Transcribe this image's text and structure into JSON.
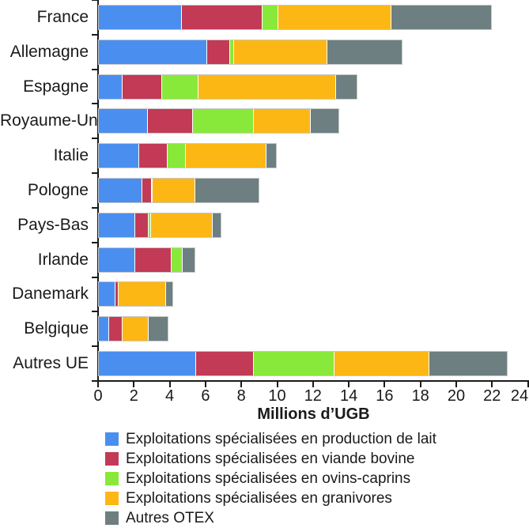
{
  "chart_data": {
    "type": "bar",
    "orientation": "horizontal",
    "stacked": true,
    "grid": false,
    "legend_position": "bottom",
    "xlabel": "Millions d’UGB",
    "xlim": [
      0,
      24
    ],
    "x_ticks": [
      0,
      2,
      4,
      6,
      8,
      10,
      12,
      14,
      16,
      18,
      20,
      22,
      24
    ],
    "unit": "millions d'UGB",
    "categories": [
      "France",
      "Allemagne",
      "Espagne",
      "Royaume-Uni",
      "Italie",
      "Pologne",
      "Pays-Bas",
      "Irlande",
      "Danemark",
      "Belgique",
      "Autres UE"
    ],
    "series": [
      {
        "name": "Exploitations spécialisées en production de lait",
        "color": "#4a8ff0",
        "values": [
          4.6,
          6.0,
          1.3,
          2.7,
          2.2,
          2.4,
          2.0,
          2.0,
          0.9,
          0.55,
          5.4
        ]
      },
      {
        "name": "Exploitations spécialisées en viande bovine",
        "color": "#c23a55",
        "values": [
          4.5,
          1.3,
          2.2,
          2.5,
          1.6,
          0.5,
          0.75,
          2.0,
          0.15,
          0.75,
          3.2
        ]
      },
      {
        "name": "Exploitations spécialisées en ovins-caprins",
        "color": "#88e93a",
        "values": [
          0.9,
          0.2,
          2.0,
          3.4,
          1.0,
          0.05,
          0.1,
          0.65,
          0,
          0,
          4.5
        ]
      },
      {
        "name": "Exploitations spécialisées en granivores",
        "color": "#fdb714",
        "values": [
          6.3,
          5.2,
          7.7,
          3.2,
          4.5,
          2.4,
          3.45,
          0,
          2.65,
          1.45,
          5.3
        ]
      },
      {
        "name": "Autres OTEX",
        "color": "#6d7f80",
        "values": [
          5.6,
          4.2,
          1.2,
          1.6,
          0.6,
          3.55,
          0.5,
          0.7,
          0.4,
          1.1,
          4.4
        ]
      }
    ],
    "totals": [
      21.9,
      16.9,
      14.4,
      13.4,
      9.9,
      8.9,
      6.8,
      5.35,
      4.1,
      3.85,
      22.8
    ]
  },
  "colors": {
    "axis": "#1a1a1a",
    "bar_outline": "#c9c9c9",
    "background": "#ffffff"
  }
}
